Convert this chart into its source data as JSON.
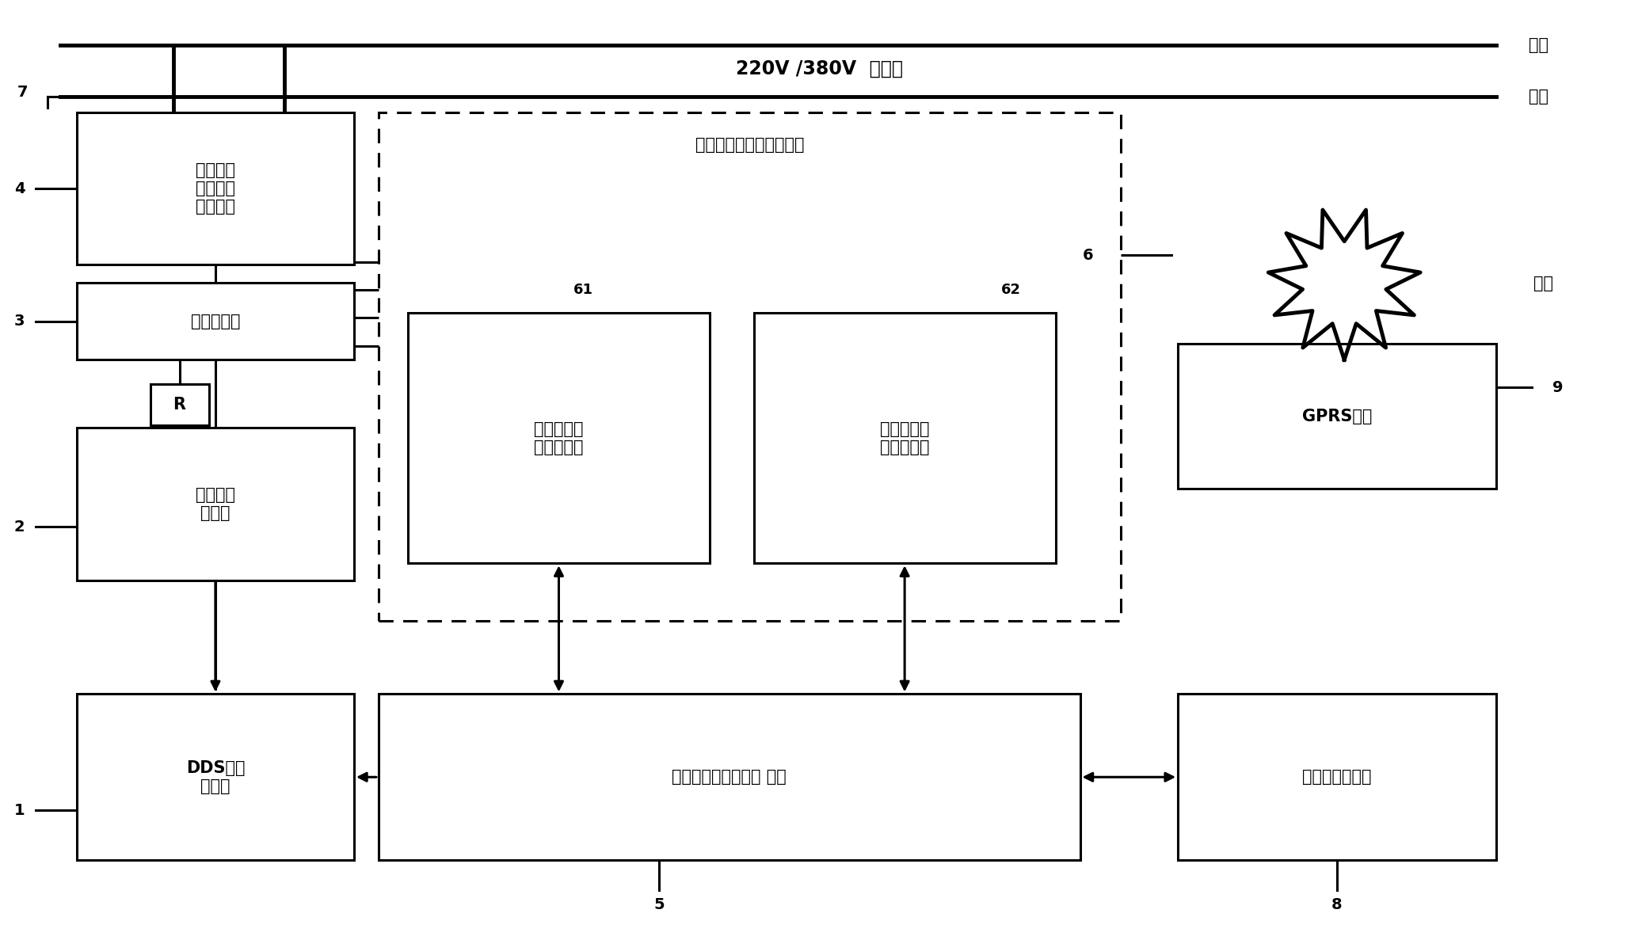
{
  "figsize": [
    20.68,
    11.87
  ],
  "bg_color": "#ffffff",
  "power_label": "220V /380V  电力线",
  "fire_label": "火线",
  "ground_label": "地线",
  "antenna_label": "天线",
  "coupler_label": "校正单元\n失谐电路\n耦合单元",
  "hft_label": "高频变压器",
  "amp_label": "高频功率\n放大器",
  "dds_label": "DDS载波\n信号源",
  "free_label": "自由坐标轴矢量测试单元",
  "real_label": "载波阻抗实\n部测试单元",
  "imag_label": "载波阻抗虚\n部测试单元",
  "esig_label": "嵌入式信号采集处理 系统",
  "gprs_label": "GPRS模块",
  "ecomm_label": "嵌入式通信单元",
  "R_label": "R"
}
